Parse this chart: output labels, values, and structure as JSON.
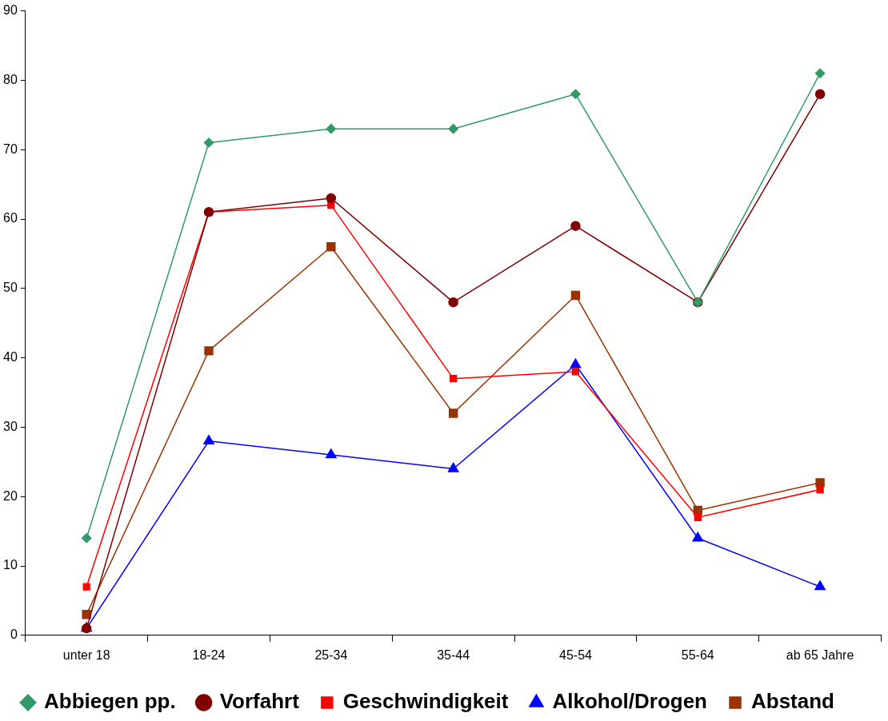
{
  "chart_data": {
    "type": "line",
    "categories": [
      "unter 18",
      "18-24",
      "25-34",
      "35-44",
      "45-54",
      "55-64",
      "ab 65 Jahre"
    ],
    "series": [
      {
        "name": "Abbiegen pp.",
        "color": "#339966",
        "marker": "diamond",
        "values": [
          14,
          71,
          73,
          73,
          78,
          48,
          81
        ]
      },
      {
        "name": "Vorfahrt",
        "color": "#800000",
        "marker": "circle",
        "values": [
          1,
          61,
          63,
          48,
          59,
          48,
          78
        ]
      },
      {
        "name": "Geschwindigkeit",
        "color": "#ff0000",
        "marker": "square",
        "values": [
          7,
          61,
          62,
          37,
          38,
          17,
          21
        ]
      },
      {
        "name": "Alkohol/Drogen",
        "color": "#0000ff",
        "marker": "triangle",
        "values": [
          1,
          28,
          26,
          24,
          39,
          14,
          7
        ]
      },
      {
        "name": "Abstand",
        "color": "#993300",
        "marker": "square",
        "values": [
          3,
          41,
          56,
          32,
          49,
          18,
          22
        ]
      }
    ],
    "ylim": [
      0,
      90
    ],
    "yticks": [
      0,
      10,
      20,
      30,
      40,
      50,
      60,
      70,
      80,
      90
    ],
    "grid": false,
    "legend": "bottom",
    "line_style": "solid"
  }
}
